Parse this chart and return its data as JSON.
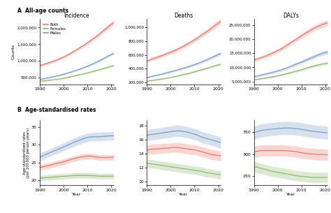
{
  "years": [
    1990,
    1991,
    1993,
    1995,
    1997,
    1999,
    2001,
    2003,
    2005,
    2007,
    2009,
    2011,
    2013,
    2015,
    2017,
    2019,
    2021
  ],
  "colors": {
    "both": "#e8796a",
    "females": "#8fbb6e",
    "males": "#7b9dc8"
  },
  "panel_A": {
    "incidence": {
      "both": [
        860000,
        880000,
        930000,
        975000,
        1025000,
        1085000,
        1150000,
        1230000,
        1315000,
        1400000,
        1490000,
        1590000,
        1690000,
        1800000,
        1920000,
        2040000,
        2150000
      ],
      "both_lo": [
        820000,
        840000,
        890000,
        935000,
        985000,
        1045000,
        1110000,
        1188000,
        1270000,
        1353000,
        1442000,
        1538000,
        1634000,
        1740000,
        1855000,
        1972000,
        2080000
      ],
      "both_hi": [
        900000,
        920000,
        970000,
        1015000,
        1065000,
        1125000,
        1190000,
        1272000,
        1360000,
        1447000,
        1538000,
        1642000,
        1746000,
        1860000,
        1985000,
        2108000,
        2220000
      ],
      "females": [
        390000,
        398000,
        415000,
        432000,
        450000,
        472000,
        498000,
        528000,
        560000,
        592000,
        625000,
        660000,
        698000,
        738000,
        778000,
        820000,
        858000
      ],
      "females_lo": [
        372000,
        380000,
        397000,
        413000,
        431000,
        452000,
        477000,
        506000,
        537000,
        568000,
        600000,
        634000,
        671000,
        710000,
        749000,
        789000,
        826000
      ],
      "females_hi": [
        408000,
        416000,
        433000,
        451000,
        469000,
        492000,
        519000,
        550000,
        583000,
        616000,
        650000,
        686000,
        725000,
        766000,
        807000,
        851000,
        890000
      ],
      "males": [
        445000,
        458000,
        486000,
        515000,
        548000,
        583000,
        622000,
        666000,
        712000,
        760000,
        812000,
        872000,
        935000,
        1005000,
        1078000,
        1155000,
        1225000
      ],
      "males_lo": [
        426000,
        439000,
        466000,
        494000,
        526000,
        560000,
        598000,
        641000,
        686000,
        732000,
        782000,
        840000,
        902000,
        970000,
        1041000,
        1116000,
        1183000
      ],
      "males_hi": [
        464000,
        477000,
        506000,
        536000,
        570000,
        606000,
        646000,
        691000,
        738000,
        788000,
        842000,
        904000,
        968000,
        1040000,
        1115000,
        1194000,
        1267000
      ]
    },
    "deaths": {
      "both": [
        510000,
        522000,
        549000,
        573000,
        598000,
        625000,
        652000,
        683000,
        718000,
        756000,
        796000,
        840000,
        887000,
        935000,
        985000,
        1038000,
        1085000
      ],
      "both_lo": [
        488000,
        499000,
        525000,
        549000,
        573000,
        599000,
        625000,
        655000,
        689000,
        725000,
        764000,
        806000,
        852000,
        899000,
        948000,
        999000,
        1045000
      ],
      "both_hi": [
        532000,
        545000,
        573000,
        597000,
        623000,
        651000,
        679000,
        711000,
        747000,
        787000,
        828000,
        874000,
        922000,
        971000,
        1022000,
        1077000,
        1125000
      ],
      "females": [
        215000,
        220000,
        231000,
        241000,
        252000,
        264000,
        277000,
        292000,
        308000,
        325000,
        343000,
        362000,
        382000,
        402000,
        423000,
        444000,
        463000
      ],
      "females_lo": [
        205000,
        210000,
        220000,
        230000,
        241000,
        252000,
        265000,
        279000,
        295000,
        311000,
        328000,
        347000,
        366000,
        386000,
        406000,
        427000,
        445000
      ],
      "females_hi": [
        225000,
        230000,
        242000,
        252000,
        263000,
        276000,
        289000,
        305000,
        321000,
        339000,
        358000,
        377000,
        398000,
        418000,
        440000,
        461000,
        481000
      ],
      "males": [
        268000,
        276000,
        293000,
        309000,
        326000,
        344000,
        362000,
        382000,
        402000,
        422000,
        444000,
        469000,
        497000,
        525000,
        556000,
        589000,
        619000
      ],
      "males_lo": [
        256000,
        264000,
        280000,
        296000,
        312000,
        329000,
        347000,
        366000,
        386000,
        405000,
        426000,
        450000,
        477000,
        505000,
        535000,
        567000,
        596000
      ],
      "males_hi": [
        280000,
        288000,
        306000,
        322000,
        340000,
        359000,
        377000,
        398000,
        418000,
        439000,
        462000,
        488000,
        517000,
        545000,
        577000,
        611000,
        642000
      ]
    },
    "dalys": {
      "both": [
        12500000,
        12800000,
        13400000,
        14000000,
        14700000,
        15500000,
        16300000,
        17300000,
        18400000,
        19500000,
        20600000,
        21700000,
        22700000,
        23700000,
        24500000,
        25200000,
        25700000
      ],
      "both_lo": [
        11900000,
        12200000,
        12800000,
        13400000,
        14050000,
        14820000,
        15600000,
        16560000,
        17640000,
        18700000,
        19760000,
        20810000,
        21770000,
        22720000,
        23500000,
        24180000,
        24670000
      ],
      "both_hi": [
        13100000,
        13400000,
        14000000,
        14600000,
        15350000,
        16180000,
        17000000,
        18040000,
        19160000,
        20300000,
        21440000,
        22590000,
        23630000,
        24680000,
        25500000,
        26220000,
        26730000
      ],
      "females": [
        5600000,
        5720000,
        5980000,
        6240000,
        6530000,
        6850000,
        7200000,
        7600000,
        8040000,
        8490000,
        8960000,
        9450000,
        9940000,
        10410000,
        10820000,
        11200000,
        11500000
      ],
      "females_lo": [
        5330000,
        5445000,
        5691000,
        5940000,
        6215000,
        6520000,
        6855000,
        7240000,
        7658000,
        8087000,
        8535000,
        9003000,
        9473000,
        9921000,
        10312000,
        10680000,
        10965000
      ],
      "females_hi": [
        5870000,
        5995000,
        6269000,
        6540000,
        6845000,
        7180000,
        7545000,
        7960000,
        8422000,
        8893000,
        9385000,
        9897000,
        10407000,
        10899000,
        11328000,
        11720000,
        12035000
      ],
      "males": [
        6700000,
        6880000,
        7260000,
        7640000,
        8050000,
        8500000,
        8980000,
        9540000,
        10200000,
        10880000,
        11550000,
        12250000,
        12960000,
        13680000,
        14360000,
        15000000,
        15450000
      ],
      "males_lo": [
        6370000,
        6536000,
        6897000,
        7258000,
        7648000,
        8075000,
        8531000,
        9063000,
        9690000,
        10336000,
        10973000,
        11638000,
        12312000,
        13004000,
        13642000,
        14250000,
        14678000
      ],
      "males_hi": [
        7030000,
        7224000,
        7623000,
        8022000,
        8453000,
        8925000,
        9429000,
        10017000,
        10710000,
        11424000,
        12128000,
        12863000,
        13608000,
        14356000,
        15078000,
        15750000,
        16223000
      ]
    }
  },
  "panel_B": {
    "incidence": {
      "both": [
        23.5,
        23.7,
        24.0,
        24.3,
        24.7,
        25.0,
        25.4,
        25.8,
        26.2,
        26.5,
        26.7,
        26.8,
        26.6,
        26.4,
        26.4,
        26.4,
        26.5
      ],
      "both_lo": [
        22.7,
        22.9,
        23.2,
        23.5,
        23.9,
        24.2,
        24.6,
        25.0,
        25.4,
        25.7,
        25.9,
        26.0,
        25.8,
        25.6,
        25.6,
        25.6,
        25.7
      ],
      "both_hi": [
        24.3,
        24.5,
        24.8,
        25.1,
        25.5,
        25.8,
        26.2,
        26.6,
        27.0,
        27.3,
        27.5,
        27.6,
        27.4,
        27.2,
        27.2,
        27.2,
        27.3
      ],
      "females": [
        20.5,
        20.6,
        20.7,
        20.8,
        20.9,
        21.0,
        21.1,
        21.2,
        21.3,
        21.3,
        21.3,
        21.3,
        21.2,
        21.1,
        21.1,
        21.1,
        21.1
      ],
      "females_lo": [
        19.7,
        19.8,
        19.9,
        20.0,
        20.1,
        20.2,
        20.3,
        20.4,
        20.5,
        20.5,
        20.5,
        20.5,
        20.4,
        20.3,
        20.3,
        20.3,
        20.3
      ],
      "females_hi": [
        21.3,
        21.4,
        21.5,
        21.6,
        21.7,
        21.8,
        21.9,
        22.0,
        22.1,
        22.1,
        22.1,
        22.1,
        22.0,
        21.9,
        21.9,
        21.9,
        21.9
      ],
      "males": [
        26.5,
        26.8,
        27.4,
        28.0,
        28.5,
        29.1,
        29.7,
        30.3,
        30.9,
        31.4,
        31.9,
        32.2,
        32.3,
        32.3,
        32.4,
        32.5,
        32.6
      ],
      "males_lo": [
        25.4,
        25.7,
        26.3,
        26.9,
        27.4,
        28.0,
        28.6,
        29.1,
        29.7,
        30.2,
        30.7,
        31.0,
        31.1,
        31.1,
        31.2,
        31.3,
        31.4
      ],
      "males_hi": [
        27.6,
        27.9,
        28.5,
        29.1,
        29.6,
        30.2,
        30.8,
        31.5,
        32.1,
        32.6,
        33.1,
        33.4,
        33.5,
        33.5,
        33.6,
        33.7,
        33.8
      ]
    },
    "deaths": {
      "both": [
        14.5,
        14.6,
        14.7,
        14.7,
        14.8,
        14.8,
        14.9,
        14.9,
        14.8,
        14.7,
        14.6,
        14.5,
        14.3,
        14.1,
        13.9,
        13.8,
        13.7
      ],
      "both_lo": [
        13.8,
        13.9,
        14.0,
        14.0,
        14.1,
        14.1,
        14.2,
        14.2,
        14.1,
        14.0,
        13.9,
        13.8,
        13.6,
        13.4,
        13.2,
        13.1,
        13.0
      ],
      "both_hi": [
        15.2,
        15.3,
        15.4,
        15.4,
        15.5,
        15.5,
        15.6,
        15.6,
        15.5,
        15.4,
        15.3,
        15.2,
        15.0,
        14.8,
        14.6,
        14.5,
        14.4
      ],
      "females": [
        12.6,
        12.6,
        12.5,
        12.4,
        12.3,
        12.2,
        12.1,
        12.0,
        11.9,
        11.8,
        11.7,
        11.6,
        11.5,
        11.3,
        11.2,
        11.1,
        11.0
      ],
      "females_lo": [
        12.0,
        12.0,
        11.9,
        11.8,
        11.7,
        11.6,
        11.5,
        11.4,
        11.3,
        11.2,
        11.1,
        11.0,
        10.9,
        10.7,
        10.6,
        10.5,
        10.4
      ],
      "females_hi": [
        13.2,
        13.2,
        13.1,
        13.0,
        12.9,
        12.8,
        12.7,
        12.6,
        12.5,
        12.4,
        12.3,
        12.2,
        12.1,
        11.9,
        11.8,
        11.7,
        11.6
      ],
      "males": [
        16.6,
        16.7,
        16.8,
        16.9,
        17.0,
        17.1,
        17.2,
        17.3,
        17.2,
        17.1,
        16.9,
        16.7,
        16.4,
        16.2,
        16.0,
        15.8,
        15.6
      ],
      "males_lo": [
        15.8,
        15.9,
        16.0,
        16.1,
        16.2,
        16.3,
        16.4,
        16.5,
        16.4,
        16.3,
        16.1,
        15.9,
        15.6,
        15.4,
        15.2,
        15.0,
        14.8
      ],
      "males_hi": [
        17.4,
        17.5,
        17.6,
        17.7,
        17.8,
        17.9,
        18.0,
        18.1,
        18.0,
        17.9,
        17.7,
        17.5,
        17.2,
        17.0,
        16.8,
        16.6,
        16.4
      ]
    },
    "dalys": {
      "both": [
        305,
        306,
        308,
        308,
        308,
        308,
        308,
        308,
        307,
        306,
        304,
        302,
        301,
        300,
        299,
        299,
        298
      ],
      "both_lo": [
        292,
        293,
        295,
        295,
        295,
        295,
        295,
        295,
        294,
        293,
        291,
        289,
        288,
        287,
        286,
        286,
        285
      ],
      "both_hi": [
        318,
        319,
        321,
        321,
        321,
        321,
        321,
        321,
        320,
        319,
        317,
        315,
        314,
        313,
        312,
        312,
        311
      ],
      "females": [
        272,
        270,
        267,
        264,
        261,
        259,
        257,
        255,
        253,
        251,
        249,
        248,
        247,
        246,
        246,
        246,
        246
      ],
      "females_lo": [
        260,
        258,
        255,
        252,
        249,
        247,
        245,
        243,
        241,
        239,
        237,
        236,
        235,
        234,
        234,
        234,
        234
      ],
      "females_hi": [
        284,
        282,
        279,
        276,
        273,
        271,
        269,
        267,
        265,
        263,
        261,
        260,
        259,
        258,
        258,
        258,
        258
      ],
      "males": [
        348,
        351,
        354,
        356,
        357,
        358,
        359,
        360,
        360,
        359,
        358,
        356,
        354,
        352,
        351,
        350,
        349
      ],
      "males_lo": [
        333,
        336,
        339,
        341,
        342,
        343,
        344,
        345,
        345,
        344,
        343,
        341,
        339,
        337,
        336,
        335,
        334
      ],
      "males_hi": [
        363,
        366,
        369,
        371,
        372,
        373,
        374,
        375,
        375,
        374,
        373,
        371,
        369,
        367,
        366,
        365,
        364
      ]
    }
  },
  "col_titles": [
    "Incidence",
    "Deaths",
    "DALYs"
  ],
  "row_label_A": "A  All-age counts",
  "row_label_B": "B  Age-standardised rates",
  "ylabel_A": "Counts",
  "ylabel_B": "Age-standardised rates\n(per 100 000 person-years)",
  "xlabel": "Year",
  "legend": [
    "Both",
    "Females",
    "Males"
  ],
  "xticks": [
    1990,
    2000,
    2010,
    2020
  ],
  "yticks_A_inc": [
    500000,
    1000000,
    1500000,
    2000000
  ],
  "ylim_A_inc": [
    300000,
    2250000
  ],
  "yticks_A_dea": [
    200000,
    400000,
    600000,
    800000,
    1000000
  ],
  "ylim_A_dea": [
    170000,
    1120000
  ],
  "yticks_A_dal": [
    5000000,
    10000000,
    15000000,
    20000000,
    25000000
  ],
  "ylim_A_dal": [
    4000000,
    27000000
  ],
  "yticks_B_inc": [
    20,
    25,
    30,
    35
  ],
  "ylim_B_inc": [
    18.5,
    37
  ],
  "yticks_B_dea": [
    10,
    12,
    14,
    16,
    18
  ],
  "ylim_B_dea": [
    9.5,
    18.8
  ],
  "yticks_B_dal": [
    250,
    300,
    350
  ],
  "ylim_B_dal": [
    228,
    378
  ]
}
